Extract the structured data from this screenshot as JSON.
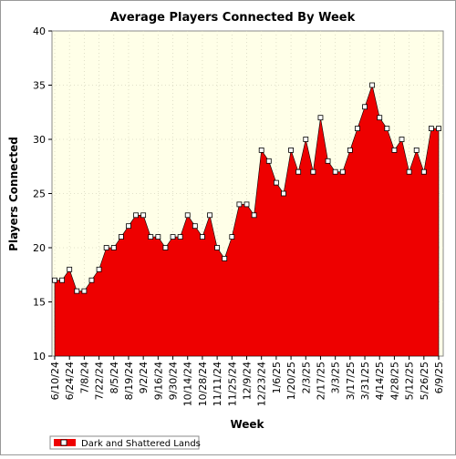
{
  "chart_data": {
    "type": "area",
    "title": "Average Players Connected By Week",
    "xlabel": "Week",
    "ylabel": "Players Connected",
    "ylim": [
      10,
      40
    ],
    "yticks": [
      10,
      15,
      20,
      25,
      30,
      35,
      40
    ],
    "grid": true,
    "legend_position": "bottom-left",
    "categories": [
      "6/10/24",
      "6/17/24",
      "6/24/24",
      "7/1/24",
      "7/8/24",
      "7/15/24",
      "7/22/24",
      "7/29/24",
      "8/5/24",
      "8/12/24",
      "8/19/24",
      "8/26/24",
      "9/2/24",
      "9/9/24",
      "9/16/24",
      "9/23/24",
      "9/30/24",
      "10/7/24",
      "10/14/24",
      "10/21/24",
      "10/28/24",
      "11/4/24",
      "11/11/24",
      "11/18/24",
      "11/25/24",
      "12/2/24",
      "12/9/24",
      "12/16/24",
      "12/23/24",
      "12/30/24",
      "1/6/25",
      "1/13/25",
      "1/20/25",
      "1/27/25",
      "2/3/25",
      "2/10/25",
      "2/17/25",
      "2/24/25",
      "3/3/25",
      "3/10/25",
      "3/17/25",
      "3/24/25",
      "3/31/25",
      "4/7/25",
      "4/14/25",
      "4/21/25",
      "4/28/25",
      "5/5/25",
      "5/12/25",
      "5/19/25",
      "5/26/25",
      "6/2/25",
      "6/9/25"
    ],
    "tick_labels": [
      "6/10/24",
      "6/24/24",
      "7/8/24",
      "7/22/24",
      "8/5/24",
      "8/19/24",
      "9/2/24",
      "9/16/24",
      "9/30/24",
      "10/14/24",
      "10/28/24",
      "11/11/24",
      "11/25/24",
      "12/9/24",
      "12/23/24",
      "1/6/25",
      "1/20/25",
      "2/3/25",
      "2/17/25",
      "3/3/25",
      "3/17/25",
      "3/31/25",
      "4/14/25",
      "4/28/25",
      "5/12/25",
      "5/26/25",
      "6/9/25"
    ],
    "series": [
      {
        "name": "Dark and Shattered Lands",
        "color": "#ee0000",
        "values": [
          17,
          17,
          18,
          16,
          16,
          17,
          18,
          20,
          20,
          21,
          22,
          23,
          23,
          21,
          21,
          20,
          21,
          21,
          23,
          22,
          21,
          23,
          20,
          19,
          21,
          24,
          24,
          23,
          29,
          28,
          26,
          25,
          29,
          27,
          30,
          27,
          32,
          28,
          27,
          27,
          29,
          31,
          33,
          35,
          32,
          31,
          29,
          30,
          27,
          29,
          27,
          31,
          31
        ]
      }
    ],
    "colors": {
      "plot_background": "#ffffe8",
      "area_fill": "#ee0000",
      "marker_fill": "#ffffff"
    }
  }
}
